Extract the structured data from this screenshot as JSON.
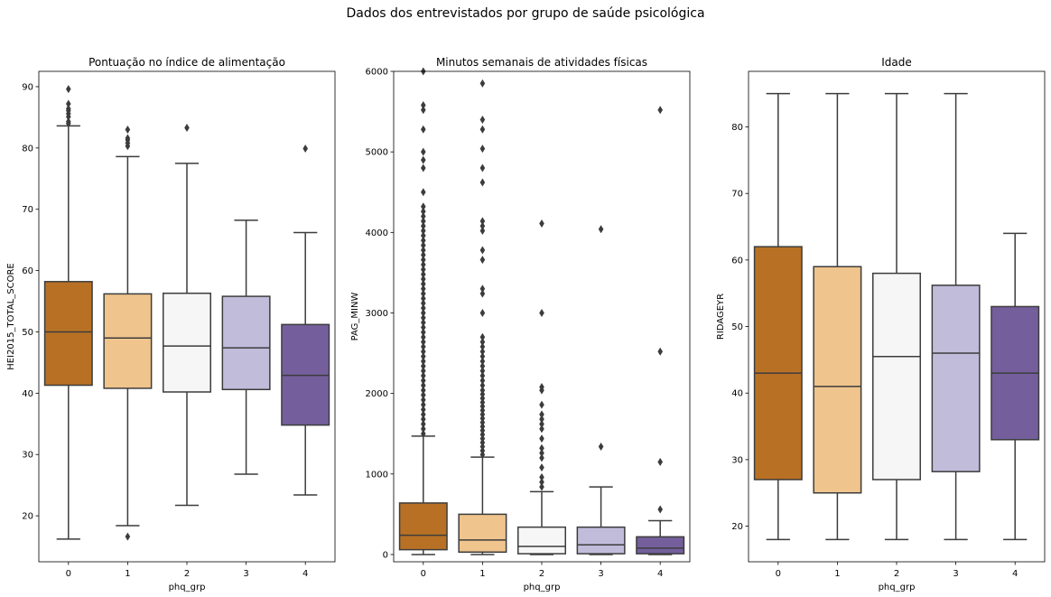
{
  "suptitle": "Dados dos entrevistados por grupo de saúde psicológica",
  "palette": [
    "#b87124",
    "#efc48d",
    "#f6f6f6",
    "#c1bcda",
    "#745f9c"
  ],
  "line_color": "#3c3c3c",
  "chart_data": [
    {
      "type": "box",
      "title": "Pontuação no índice de alimentação",
      "xlabel": "phq_grp",
      "ylabel": "HEI2015_TOTAL_SCORE",
      "categories": [
        "0",
        "1",
        "2",
        "3",
        "4"
      ],
      "ylim": [
        12.5,
        92.5
      ],
      "yticks": [
        20,
        30,
        40,
        50,
        60,
        70,
        80,
        90
      ],
      "boxes": [
        {
          "category": "0",
          "whislo": 16.2,
          "q1": 41.3,
          "med": 50.0,
          "q3": 58.2,
          "whishi": 83.6,
          "fliers": [
            84.0,
            84.3,
            85.1,
            85.6,
            86.1,
            86.4,
            87.2,
            89.6
          ]
        },
        {
          "category": "1",
          "whislo": 18.4,
          "q1": 40.8,
          "med": 49.0,
          "q3": 56.2,
          "whishi": 78.6,
          "fliers": [
            16.6,
            80.3,
            80.8,
            81.3,
            81.6,
            83.0
          ]
        },
        {
          "category": "2",
          "whislo": 21.7,
          "q1": 40.2,
          "med": 47.7,
          "q3": 56.3,
          "whishi": 77.5,
          "fliers": [
            83.3
          ]
        },
        {
          "category": "3",
          "whislo": 26.8,
          "q1": 40.6,
          "med": 47.4,
          "q3": 55.8,
          "whishi": 68.2,
          "fliers": []
        },
        {
          "category": "4",
          "whislo": 23.4,
          "q1": 34.8,
          "med": 42.9,
          "q3": 51.2,
          "whishi": 66.2,
          "fliers": [
            79.9
          ]
        }
      ]
    },
    {
      "type": "box",
      "title": "Minutos semanais de atividades físicas",
      "xlabel": "phq_grp",
      "ylabel": "PAG_MINW",
      "categories": [
        "0",
        "1",
        "2",
        "3",
        "4"
      ],
      "ylim": [
        -90,
        6000
      ],
      "yticks": [
        0,
        1000,
        2000,
        3000,
        4000,
        5000,
        6000
      ],
      "boxes": [
        {
          "category": "0",
          "whislo": 0,
          "q1": 60,
          "med": 240,
          "q3": 640,
          "whishi": 1470,
          "fliers": [
            1500,
            1560,
            1620,
            1680,
            1740,
            1800,
            1860,
            1920,
            1980,
            2040,
            2100,
            2160,
            2220,
            2280,
            2340,
            2400,
            2460,
            2520,
            2580,
            2640,
            2700,
            2760,
            2820,
            2880,
            2940,
            3000,
            3060,
            3120,
            3180,
            3240,
            3300,
            3360,
            3420,
            3480,
            3540,
            3600,
            3660,
            3720,
            3780,
            3840,
            3900,
            3960,
            4020,
            4080,
            4140,
            4200,
            4260,
            4320,
            4500,
            4800,
            4900,
            5000,
            5280,
            5520,
            5580,
            6000
          ]
        },
        {
          "category": "1",
          "whislo": 0,
          "q1": 30,
          "med": 180,
          "q3": 500,
          "whishi": 1210,
          "fliers": [
            1240,
            1290,
            1340,
            1390,
            1440,
            1490,
            1540,
            1590,
            1640,
            1690,
            1740,
            1790,
            1840,
            1890,
            1940,
            1990,
            2040,
            2100,
            2160,
            2220,
            2280,
            2340,
            2400,
            2460,
            2520,
            2580,
            2640,
            2700,
            3000,
            3240,
            3300,
            3660,
            3780,
            4020,
            4080,
            4140,
            4620,
            4800,
            5040,
            5280,
            5400,
            5850
          ]
        },
        {
          "category": "2",
          "whislo": 0,
          "q1": 10,
          "med": 100,
          "q3": 340,
          "whishi": 780,
          "fliers": [
            840,
            900,
            960,
            1080,
            1200,
            1260,
            1320,
            1440,
            1560,
            1620,
            1680,
            1740,
            1860,
            2040,
            2080,
            3000,
            4110
          ]
        },
        {
          "category": "3",
          "whislo": 0,
          "q1": 10,
          "med": 120,
          "q3": 340,
          "whishi": 840,
          "fliers": [
            1340,
            4040
          ]
        },
        {
          "category": "4",
          "whislo": 0,
          "q1": 10,
          "med": 80,
          "q3": 220,
          "whishi": 420,
          "fliers": [
            560,
            1150,
            2520,
            5520
          ]
        }
      ]
    },
    {
      "type": "box",
      "title": "Idade",
      "xlabel": "phq_grp",
      "ylabel": "RIDAGEYR",
      "categories": [
        "0",
        "1",
        "2",
        "3",
        "4"
      ],
      "ylim": [
        14.65,
        88.35
      ],
      "yticks": [
        20,
        30,
        40,
        50,
        60,
        70,
        80
      ],
      "boxes": [
        {
          "category": "0",
          "whislo": 18,
          "q1": 27,
          "med": 43,
          "q3": 62,
          "whishi": 85,
          "fliers": []
        },
        {
          "category": "1",
          "whislo": 18,
          "q1": 25,
          "med": 41,
          "q3": 59,
          "whishi": 85,
          "fliers": []
        },
        {
          "category": "2",
          "whislo": 18,
          "q1": 27,
          "med": 45.5,
          "q3": 58,
          "whishi": 85,
          "fliers": []
        },
        {
          "category": "3",
          "whislo": 18,
          "q1": 28.2,
          "med": 46,
          "q3": 56.2,
          "whishi": 85,
          "fliers": []
        },
        {
          "category": "4",
          "whislo": 18,
          "q1": 33,
          "med": 43,
          "q3": 53,
          "whishi": 64,
          "fliers": []
        }
      ]
    }
  ]
}
